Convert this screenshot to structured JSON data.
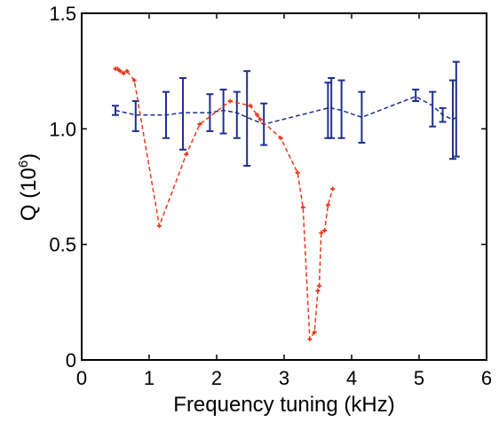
{
  "chart_data": {
    "type": "line",
    "xlabel": "Frequency tuning (kHz)",
    "ylabel_main": "Q  (10",
    "ylabel_sup": "6",
    "ylabel_close": ")",
    "xlim": [
      0,
      6
    ],
    "ylim": [
      0,
      1.5
    ],
    "xticks": [
      0,
      1,
      2,
      3,
      4,
      5,
      6
    ],
    "yticks": [
      0,
      0.5,
      1.0,
      1.5
    ],
    "xtick_labels": [
      "0",
      "1",
      "2",
      "3",
      "4",
      "5",
      "6"
    ],
    "ytick_labels": [
      "0",
      "0.5",
      "1.0",
      "1.5"
    ],
    "grid": false,
    "series": [
      {
        "color": "#1f2f8f",
        "points": [
          {
            "x": 0.5,
            "y": 1.08,
            "lo": 1.06,
            "hi": 1.1
          },
          {
            "x": 0.8,
            "y": 1.06,
            "lo": 0.99,
            "hi": 1.12
          },
          {
            "x": 1.25,
            "y": 1.06,
            "lo": 0.96,
            "hi": 1.16
          },
          {
            "x": 1.5,
            "y": 1.07,
            "lo": 0.91,
            "hi": 1.22
          },
          {
            "x": 1.9,
            "y": 1.07,
            "lo": 0.99,
            "hi": 1.15
          },
          {
            "x": 2.1,
            "y": 1.08,
            "lo": 0.98,
            "hi": 1.17
          },
          {
            "x": 2.3,
            "y": 1.07,
            "lo": 0.96,
            "hi": 1.16
          },
          {
            "x": 2.45,
            "y": 1.05,
            "lo": 0.84,
            "hi": 1.25
          },
          {
            "x": 2.7,
            "y": 1.02,
            "lo": 0.93,
            "hi": 1.11
          },
          {
            "x": 3.65,
            "y": 1.09,
            "lo": 0.96,
            "hi": 1.2
          },
          {
            "x": 3.7,
            "y": 1.09,
            "lo": 0.96,
            "hi": 1.22
          },
          {
            "x": 3.85,
            "y": 1.08,
            "lo": 0.96,
            "hi": 1.21
          },
          {
            "x": 4.15,
            "y": 1.05,
            "lo": 0.94,
            "hi": 1.16
          },
          {
            "x": 4.95,
            "y": 1.14,
            "lo": 1.12,
            "hi": 1.17
          },
          {
            "x": 5.2,
            "y": 1.1,
            "lo": 1.01,
            "hi": 1.16
          },
          {
            "x": 5.35,
            "y": 1.06,
            "lo": 1.03,
            "hi": 1.09
          },
          {
            "x": 5.5,
            "y": 1.04,
            "lo": 0.87,
            "hi": 1.21
          },
          {
            "x": 5.55,
            "y": 1.05,
            "lo": 0.88,
            "hi": 1.29
          }
        ]
      },
      {
        "color": "#e8391d",
        "points": [
          {
            "x": 0.5,
            "y": 1.26
          },
          {
            "x": 0.53,
            "y": 1.26
          },
          {
            "x": 0.57,
            "y": 1.25
          },
          {
            "x": 0.62,
            "y": 1.24
          },
          {
            "x": 0.67,
            "y": 1.25
          },
          {
            "x": 0.78,
            "y": 1.21
          },
          {
            "x": 1.15,
            "y": 0.58
          },
          {
            "x": 1.55,
            "y": 0.89
          },
          {
            "x": 1.75,
            "y": 1.02
          },
          {
            "x": 2.2,
            "y": 1.12
          },
          {
            "x": 2.5,
            "y": 1.1
          },
          {
            "x": 2.6,
            "y": 1.06
          },
          {
            "x": 2.65,
            "y": 1.04
          },
          {
            "x": 2.95,
            "y": 0.96
          },
          {
            "x": 3.2,
            "y": 0.81
          },
          {
            "x": 3.28,
            "y": 0.66
          },
          {
            "x": 3.38,
            "y": 0.09
          },
          {
            "x": 3.45,
            "y": 0.12
          },
          {
            "x": 3.5,
            "y": 0.3
          },
          {
            "x": 3.52,
            "y": 0.32
          },
          {
            "x": 3.55,
            "y": 0.55
          },
          {
            "x": 3.6,
            "y": 0.56
          },
          {
            "x": 3.65,
            "y": 0.67
          },
          {
            "x": 3.72,
            "y": 0.74
          }
        ]
      }
    ]
  }
}
